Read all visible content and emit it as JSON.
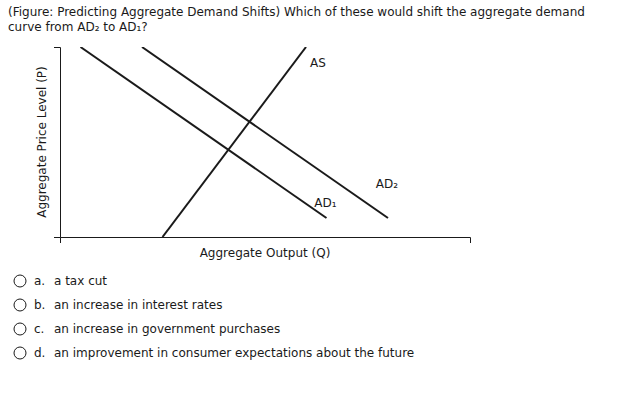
{
  "chart_data": {
    "type": "line",
    "title": "(Figure: Predicting Aggregate Demand Shifts) Which of these would shift the aggregate demand curve from AD₂ to AD₁?",
    "x_label": "Aggregate Output (Q)",
    "y_label": "Aggregate Price Level (P)",
    "xlim": [
      0,
      10
    ],
    "ylim": [
      0,
      10
    ],
    "xticks": [],
    "yticks": [],
    "tick_labels": false,
    "color": "#1a1a1a",
    "series": [
      {
        "x": [
          2.5,
          6.0
        ],
        "values": [
          0,
          10
        ]
      },
      {
        "x": [
          0.5,
          6.5
        ],
        "values": [
          10,
          1.0
        ]
      },
      {
        "x": [
          2.0,
          8.0
        ],
        "values": [
          10,
          1.0
        ]
      }
    ],
    "annotations": [
      {
        "text": "AS",
        "x": 6.1,
        "y": 9.5
      },
      {
        "text": "AD₁",
        "x": 6.2,
        "y": 1.8
      },
      {
        "text": "AD₂",
        "x": 7.7,
        "y": 2.8
      }
    ],
    "options": [
      {
        "label": "a.",
        "text": "a tax cut"
      },
      {
        "label": "b.",
        "text": "an increase in interest rates"
      },
      {
        "label": "c.",
        "text": "an increase in government purchases"
      },
      {
        "label": "d.",
        "text": "an improvement in consumer expectations about the future"
      }
    ]
  }
}
